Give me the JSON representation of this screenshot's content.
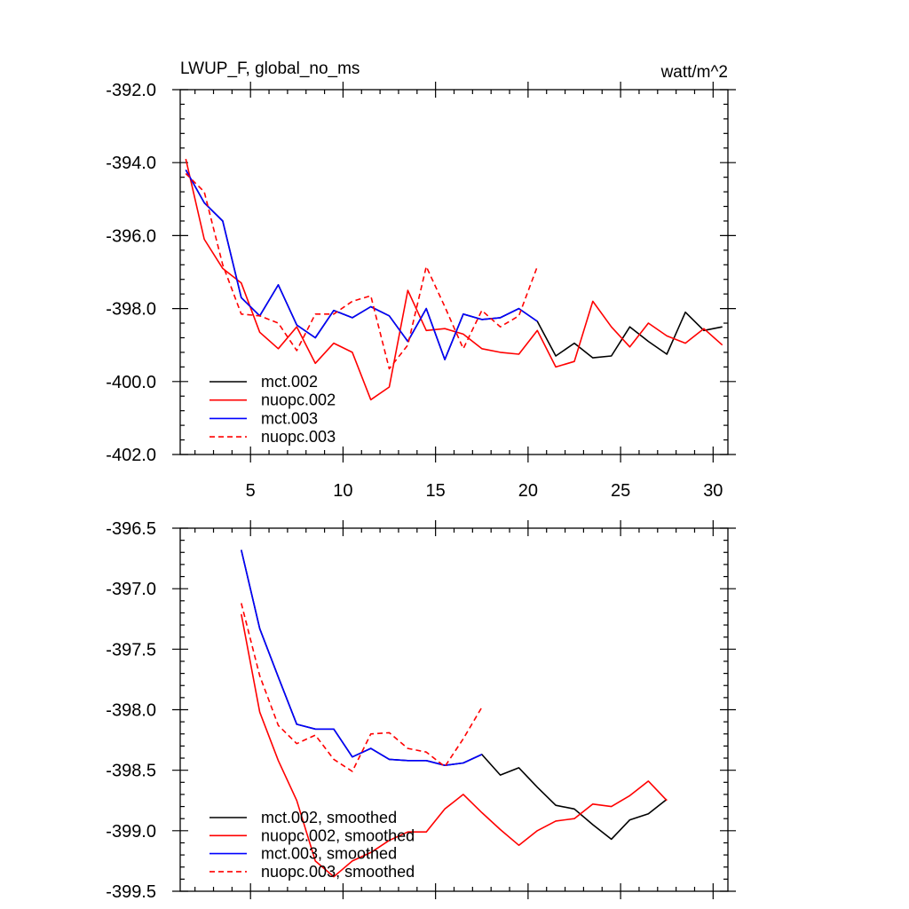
{
  "chart_data": [
    {
      "type": "line",
      "panel": "top",
      "title": "LWUP_F, global_no_ms",
      "units": "watt/m^2",
      "xlabel": "",
      "ylabel": "",
      "xlim": [
        1.2,
        30.8
      ],
      "ylim": [
        -402,
        -392
      ],
      "yticks": [
        -392,
        -394,
        -396,
        -398,
        -400,
        -402
      ],
      "ytick_labels": [
        "-392.0",
        "-394.0",
        "-396.0",
        "-398.0",
        "-400.0",
        "-402.0"
      ],
      "xticks": [
        5,
        10,
        15,
        20,
        25,
        30
      ],
      "xtick_labels": [
        "5",
        "10",
        "15",
        "20",
        "25",
        "30"
      ],
      "grid": false,
      "legend_position": "bottom-left",
      "series": [
        {
          "name": "mct.002",
          "color": "#000000",
          "dash": "solid",
          "x": [
            1.5,
            2.5,
            3.5,
            4.5,
            5.5,
            6.5,
            7.5,
            8.5,
            9.5,
            10.5,
            11.5,
            12.5,
            13.5,
            14.5,
            15.5,
            16.5,
            17.5,
            18.5,
            19.5,
            20.5,
            21.5,
            22.5,
            23.5,
            24.5,
            25.5,
            26.5,
            27.5,
            28.5,
            29.5,
            30.5
          ],
          "y": [
            -394.2,
            -395.1,
            -395.6,
            -397.7,
            -398.2,
            -397.35,
            -398.45,
            -398.8,
            -398.05,
            -398.25,
            -397.95,
            -398.2,
            -398.9,
            -398.0,
            -399.4,
            -398.15,
            -398.3,
            -398.25,
            -398.0,
            -398.35,
            -399.3,
            -398.95,
            -399.35,
            -399.3,
            -398.5,
            -398.9,
            -399.25,
            -398.1,
            -398.6,
            -398.5
          ]
        },
        {
          "name": "nuopc.002",
          "color": "#ff0000",
          "dash": "solid",
          "x": [
            1.5,
            2.5,
            3.5,
            4.5,
            5.5,
            6.5,
            7.5,
            8.5,
            9.5,
            10.5,
            11.5,
            12.5,
            13.5,
            14.5,
            15.5,
            16.5,
            17.5,
            18.5,
            19.5,
            20.5,
            21.5,
            22.5,
            23.5,
            24.5,
            25.5,
            26.5,
            27.5,
            28.5,
            29.5,
            30.5
          ],
          "y": [
            -393.9,
            -396.1,
            -396.9,
            -397.3,
            -398.65,
            -399.1,
            -398.5,
            -399.5,
            -398.95,
            -399.2,
            -400.5,
            -400.15,
            -397.5,
            -398.6,
            -398.55,
            -398.7,
            -399.1,
            -399.2,
            -399.25,
            -398.6,
            -399.6,
            -399.45,
            -397.8,
            -398.5,
            -399.05,
            -398.4,
            -398.75,
            -398.95,
            -398.55,
            -399.0
          ]
        },
        {
          "name": "mct.003",
          "color": "#0000ff",
          "dash": "solid",
          "x": [
            1.5,
            2.5,
            3.5,
            4.5,
            5.5,
            6.5,
            7.5,
            8.5,
            9.5,
            10.5,
            11.5,
            12.5,
            13.5,
            14.5,
            15.5,
            16.5,
            17.5,
            18.5,
            19.5,
            20.5
          ],
          "y": [
            -394.2,
            -395.1,
            -395.6,
            -397.7,
            -398.2,
            -397.35,
            -398.45,
            -398.8,
            -398.05,
            -398.25,
            -397.95,
            -398.2,
            -398.9,
            -398.0,
            -399.4,
            -398.15,
            -398.3,
            -398.25,
            -398.0,
            -398.35
          ]
        },
        {
          "name": "nuopc.003",
          "color": "#ff0000",
          "dash": "dashed",
          "x": [
            1.5,
            2.5,
            3.5,
            4.5,
            5.5,
            6.5,
            7.5,
            8.5,
            9.5,
            10.5,
            11.5,
            12.5,
            13.5,
            14.5,
            15.5,
            16.5,
            17.5,
            18.5,
            19.5,
            20.5
          ],
          "y": [
            -394.3,
            -394.8,
            -396.8,
            -398.15,
            -398.2,
            -398.4,
            -399.15,
            -398.15,
            -398.15,
            -397.8,
            -397.65,
            -399.65,
            -399.0,
            -396.85,
            -397.95,
            -399.1,
            -398.05,
            -398.5,
            -398.2,
            -396.85
          ]
        }
      ]
    },
    {
      "type": "line",
      "panel": "bottom",
      "title": "",
      "xlabel": "",
      "ylabel": "",
      "xlim": [
        1.2,
        30.8
      ],
      "ylim": [
        -399.5,
        -396.5
      ],
      "yticks": [
        -396.5,
        -397.0,
        -397.5,
        -398.0,
        -398.5,
        -399.0,
        -399.5
      ],
      "ytick_labels": [
        "-396.5",
        "-397.0",
        "-397.5",
        "-398.0",
        "-398.5",
        "-399.0",
        "-399.5"
      ],
      "xticks": [
        5,
        10,
        15,
        20,
        25,
        30
      ],
      "xtick_labels": [],
      "grid": false,
      "legend_position": "bottom-left",
      "series": [
        {
          "name": "mct.002, smoothed",
          "color": "#000000",
          "dash": "solid",
          "x": [
            4.5,
            5.5,
            6.5,
            7.5,
            8.5,
            9.5,
            10.5,
            11.5,
            12.5,
            13.5,
            14.5,
            15.5,
            16.5,
            17.5,
            18.5,
            19.5,
            20.5,
            21.5,
            22.5,
            23.5,
            24.5,
            25.5,
            26.5,
            27.5
          ],
          "y": [
            -396.68,
            -397.33,
            -397.73,
            -398.12,
            -398.16,
            -398.16,
            -398.39,
            -398.32,
            -398.41,
            -398.42,
            -398.42,
            -398.46,
            -398.44,
            -398.37,
            -398.54,
            -398.48,
            -398.64,
            -398.79,
            -398.82,
            -398.95,
            -399.07,
            -398.91,
            -398.86,
            -398.74
          ]
        },
        {
          "name": "nuopc.002, smoothed",
          "color": "#ff0000",
          "dash": "solid",
          "x": [
            4.5,
            5.5,
            6.5,
            7.5,
            8.5,
            9.5,
            10.5,
            11.5,
            12.5,
            13.5,
            14.5,
            15.5,
            16.5,
            17.5,
            18.5,
            19.5,
            20.5,
            21.5,
            22.5,
            23.5,
            24.5,
            25.5,
            26.5,
            27.5
          ],
          "y": [
            -397.21,
            -398.02,
            -398.42,
            -398.75,
            -399.25,
            -399.38,
            -399.25,
            -399.18,
            -399.08,
            -399.01,
            -399.01,
            -398.82,
            -398.7,
            -398.85,
            -398.99,
            -399.12,
            -399.0,
            -398.92,
            -398.9,
            -398.78,
            -398.8,
            -398.71,
            -398.59,
            -398.75
          ]
        },
        {
          "name": "mct.003, smoothed",
          "color": "#0000ff",
          "dash": "solid",
          "x": [
            4.5,
            5.5,
            6.5,
            7.5,
            8.5,
            9.5,
            10.5,
            11.5,
            12.5,
            13.5,
            14.5,
            15.5,
            16.5,
            17.5
          ],
          "y": [
            -396.68,
            -397.33,
            -397.73,
            -398.12,
            -398.16,
            -398.16,
            -398.39,
            -398.32,
            -398.41,
            -398.42,
            -398.42,
            -398.46,
            -398.44,
            -398.37
          ]
        },
        {
          "name": "nuopc.003, smoothed",
          "color": "#ff0000",
          "dash": "dashed",
          "x": [
            4.5,
            5.5,
            6.5,
            7.5,
            8.5,
            9.5,
            10.5,
            11.5,
            12.5,
            13.5,
            14.5,
            15.5,
            16.5,
            17.5
          ],
          "y": [
            -397.12,
            -397.72,
            -398.13,
            -398.28,
            -398.21,
            -398.41,
            -398.51,
            -398.2,
            -398.19,
            -398.32,
            -398.35,
            -398.47,
            -398.24,
            -397.98
          ]
        }
      ]
    }
  ]
}
